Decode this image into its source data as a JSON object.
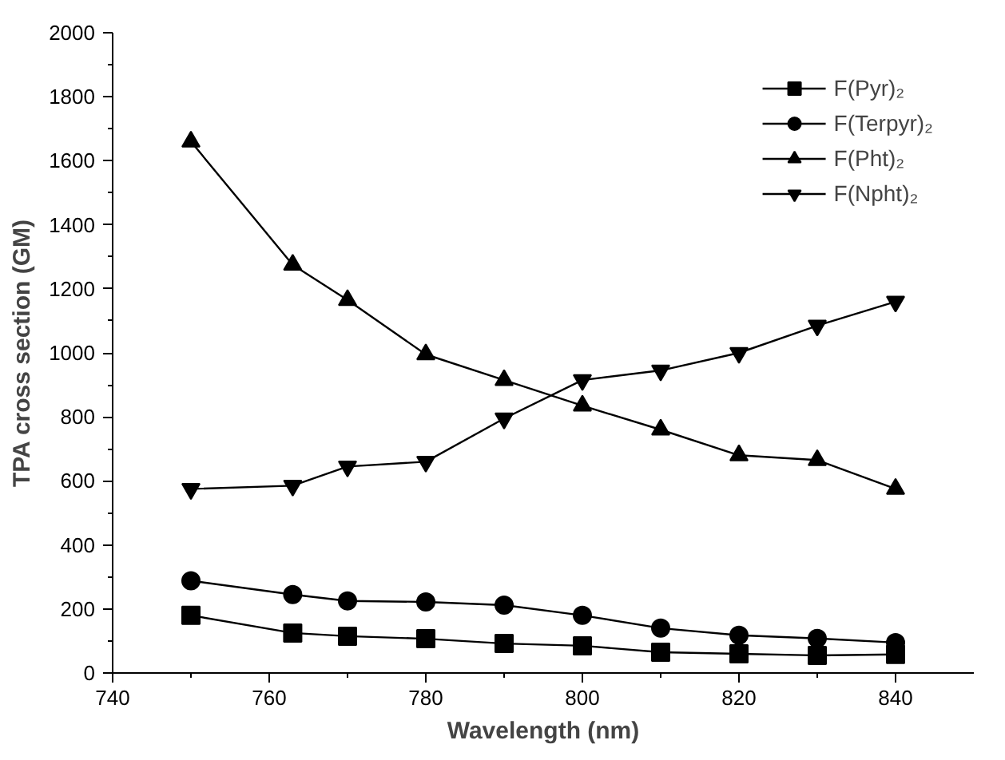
{
  "chart_data": {
    "type": "line",
    "xlabel": "Wavelength (nm)",
    "ylabel": "TPA cross section (GM)",
    "x": [
      750,
      763,
      770,
      780,
      790,
      800,
      810,
      820,
      830,
      840
    ],
    "series": [
      {
        "name": "F(Pyr)₂",
        "color": "#000000",
        "marker": "square",
        "values": [
          180,
          125,
          115,
          107,
          92,
          85,
          65,
          60,
          55,
          58
        ]
      },
      {
        "name": "F(Terpyr)₂",
        "color": "#000000",
        "marker": "circle",
        "values": [
          288,
          245,
          225,
          222,
          212,
          180,
          140,
          118,
          108,
          95
        ]
      },
      {
        "name": "F(Pht)₂",
        "color": "#000000",
        "marker": "triangle",
        "values": [
          1660,
          1275,
          1165,
          995,
          915,
          835,
          760,
          680,
          665,
          575
        ]
      },
      {
        "name": "F(Npht)₂",
        "color": "#000000",
        "marker": "triangle_down",
        "values": [
          575,
          585,
          645,
          660,
          795,
          915,
          945,
          1000,
          1085,
          1160
        ]
      }
    ],
    "xlim": [
      740,
      850
    ],
    "ylim": [
      0,
      2000
    ],
    "xticks": [
      740,
      760,
      780,
      800,
      820,
      840
    ],
    "yticks": [
      0,
      200,
      400,
      600,
      800,
      1000,
      1200,
      1400,
      1600,
      1800,
      2000
    ],
    "grid": false,
    "legend": "top right",
    "line_style": "solid"
  }
}
